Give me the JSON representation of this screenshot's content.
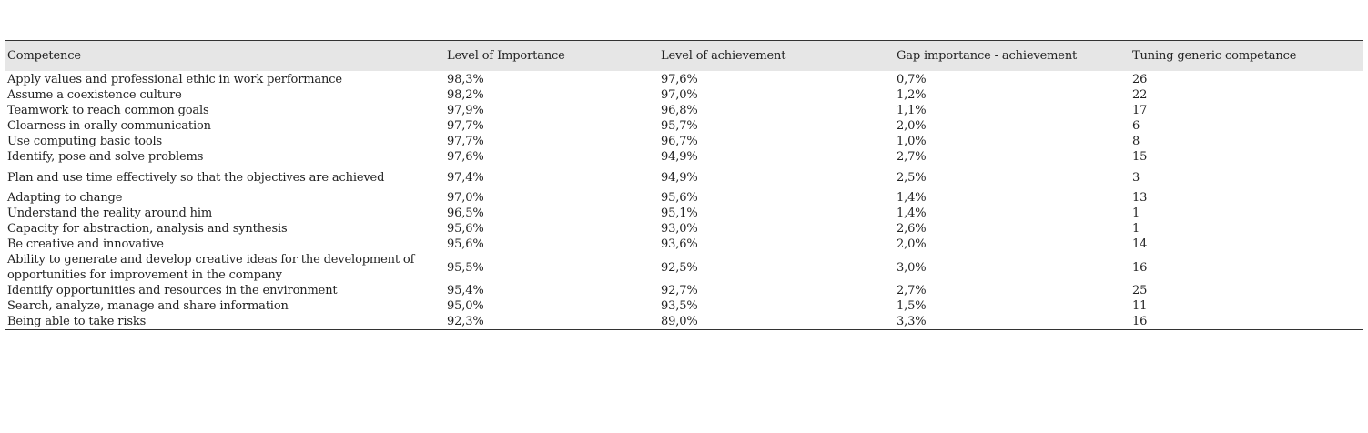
{
  "table": {
    "headers": [
      "Competence",
      "Level of Importance",
      "Level of achievement",
      "Gap importance - achievement",
      "Tuning generic competance"
    ],
    "rows": [
      [
        "Apply values and professional ethic in work performance",
        "98,3%",
        "97,6%",
        "0,7%",
        "26"
      ],
      [
        "Assume a coexistence culture",
        "98,2%",
        "97,0%",
        "1,2%",
        "22"
      ],
      [
        "Teamwork to reach common goals",
        "97,9%",
        "96,8%",
        "1,1%",
        "17"
      ],
      [
        "Clearness in orally communication",
        "97,7%",
        "95,7%",
        "2,0%",
        "6"
      ],
      [
        "Use computing basic tools",
        "97,7%",
        "96,7%",
        "1,0%",
        "8"
      ],
      [
        "Identify, pose and solve problems",
        "97,6%",
        "94,9%",
        "2,7%",
        "15"
      ],
      [
        "Plan and use time effectively so that the objectives are achieved",
        "97,4%",
        "94,9%",
        "2,5%",
        "3"
      ],
      [
        "Adapting to change",
        "97,0%",
        "95,6%",
        "1,4%",
        "13"
      ],
      [
        "Understand the reality around him",
        "96,5%",
        "95,1%",
        "1,4%",
        "1"
      ],
      [
        "Capacity for abstraction, analysis and synthesis",
        "95,6%",
        "93,0%",
        "2,6%",
        "1"
      ],
      [
        "Be creative and innovative",
        "95,6%",
        "93,6%",
        "2,0%",
        "14"
      ],
      [
        "Ability to generate and develop creative ideas for the development of opportunities for improvement in the company",
        "95,5%",
        "92,5%",
        "3,0%",
        "16"
      ],
      [
        "Identify opportunities and resources in the environment",
        "95,4%",
        "92,7%",
        "2,7%",
        "25"
      ],
      [
        "Search, analyze, manage and share information",
        "95,0%",
        "93,5%",
        "1,5%",
        "11"
      ],
      [
        "Being able to take risks",
        "92,3%",
        "89,0%",
        "3,3%",
        "16"
      ]
    ]
  }
}
